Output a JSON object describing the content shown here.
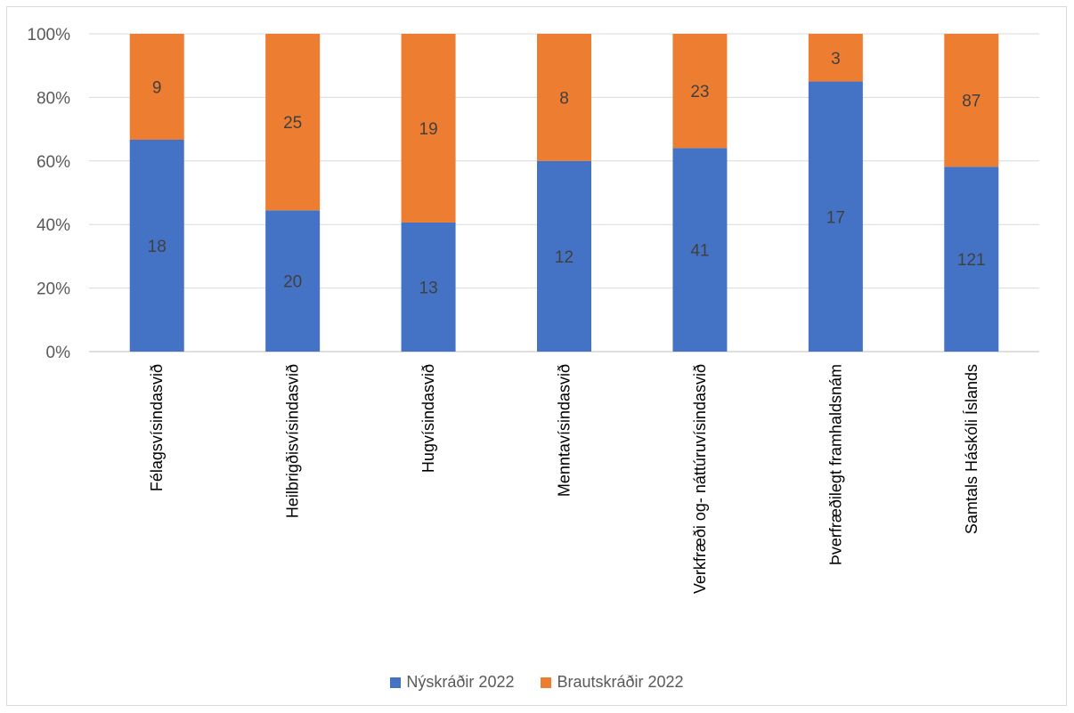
{
  "chart_data": {
    "type": "bar",
    "stacked": "percent",
    "categories": [
      "Félagsvísindasvið",
      "Heilbrigðisvísindasvið",
      "Hugvísindasvið",
      "Menntavísindasvið",
      "Verkfræði og- náttúruvísindasvið",
      "Þverfræðilegt framhaldsnám",
      "Samtals Háskóli Íslands"
    ],
    "series": [
      {
        "name": "Nýskráðir 2022",
        "values": [
          18,
          20,
          13,
          12,
          41,
          17,
          121
        ],
        "color": "#4472c4"
      },
      {
        "name": "Brautskráðir 2022",
        "values": [
          9,
          25,
          19,
          8,
          23,
          3,
          87
        ],
        "color": "#ed7d31"
      }
    ],
    "y_ticks": [
      "0%",
      "20%",
      "40%",
      "60%",
      "80%",
      "100%"
    ],
    "ylim": [
      0,
      100
    ],
    "grid": true,
    "legend_position": "bottom"
  }
}
